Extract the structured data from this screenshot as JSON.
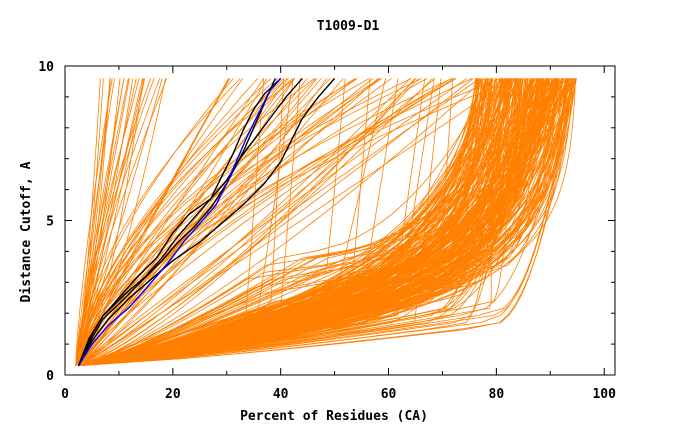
{
  "chart_data": {
    "type": "line",
    "title": "T1009-D1",
    "xlabel": "Percent of Residues (CA)",
    "ylabel": "Distance Cutoff, A",
    "xlim": [
      0,
      102
    ],
    "ylim": [
      0,
      10
    ],
    "x_ticks": [
      0,
      20,
      40,
      60,
      80,
      100
    ],
    "x_tick_labels": [
      "0",
      "20",
      "40",
      "60",
      "80",
      "100"
    ],
    "y_ticks": [
      0,
      5,
      10
    ],
    "y_tick_labels": [
      "0",
      "5",
      "10"
    ],
    "y_curve_max": 9.6,
    "grid": false,
    "legend": "none",
    "colors": {
      "other_models": "#ff8000",
      "highlight_black": "#000000",
      "highlight_blue": "#0000ff",
      "axes": "#000000"
    },
    "series": [
      {
        "color": "#000000",
        "points": [
          [
            2.5,
            0.3
          ],
          [
            5,
            1.2
          ],
          [
            7,
            1.8
          ],
          [
            10,
            2.3
          ],
          [
            14,
            3.0
          ],
          [
            18,
            3.7
          ],
          [
            21,
            4.3
          ],
          [
            24,
            4.8
          ],
          [
            27,
            5.4
          ],
          [
            30,
            6.2
          ],
          [
            33,
            7.2
          ],
          [
            35,
            8.0
          ],
          [
            37,
            8.8
          ],
          [
            39,
            9.6
          ]
        ]
      },
      {
        "color": "#000000",
        "points": [
          [
            2.5,
            0.3
          ],
          [
            5,
            1.1
          ],
          [
            8,
            1.8
          ],
          [
            12,
            2.5
          ],
          [
            16,
            3.1
          ],
          [
            20,
            3.7
          ],
          [
            25,
            4.3
          ],
          [
            29,
            4.9
          ],
          [
            33,
            5.5
          ],
          [
            37,
            6.2
          ],
          [
            40,
            6.9
          ],
          [
            42,
            7.6
          ],
          [
            44,
            8.3
          ],
          [
            47,
            9.0
          ],
          [
            50,
            9.6
          ]
        ]
      },
      {
        "color": "#000000",
        "points": [
          [
            2.5,
            0.3
          ],
          [
            5,
            1.3
          ],
          [
            7,
            1.9
          ],
          [
            10,
            2.5
          ],
          [
            13,
            3.1
          ],
          [
            17,
            3.8
          ],
          [
            20,
            4.6
          ],
          [
            23,
            5.2
          ],
          [
            27,
            5.7
          ],
          [
            30,
            6.3
          ],
          [
            32,
            6.9
          ],
          [
            35,
            7.6
          ],
          [
            38,
            8.3
          ],
          [
            41,
            9.0
          ],
          [
            44,
            9.6
          ]
        ]
      },
      {
        "color": "#000000",
        "points": [
          [
            2.5,
            0.3
          ],
          [
            4.5,
            1.2
          ],
          [
            7,
            1.9
          ],
          [
            11,
            2.6
          ],
          [
            15,
            3.2
          ],
          [
            18,
            3.8
          ],
          [
            21,
            4.5
          ],
          [
            24,
            5.1
          ],
          [
            27,
            5.7
          ],
          [
            29,
            6.4
          ],
          [
            31,
            7.1
          ],
          [
            33,
            7.9
          ],
          [
            35,
            8.6
          ],
          [
            37,
            9.1
          ],
          [
            40,
            9.6
          ]
        ]
      },
      {
        "color": "#0000ff",
        "points": [
          [
            2.5,
            0.3
          ],
          [
            5,
            1.0
          ],
          [
            8,
            1.6
          ],
          [
            12,
            2.2
          ],
          [
            16,
            3.0
          ],
          [
            19,
            3.6
          ],
          [
            22,
            4.3
          ],
          [
            25,
            4.9
          ],
          [
            28,
            5.5
          ],
          [
            30,
            6.2
          ],
          [
            32,
            7.0
          ],
          [
            34,
            7.8
          ],
          [
            36,
            8.5
          ],
          [
            38,
            9.2
          ],
          [
            40,
            9.6
          ]
        ]
      }
    ]
  }
}
